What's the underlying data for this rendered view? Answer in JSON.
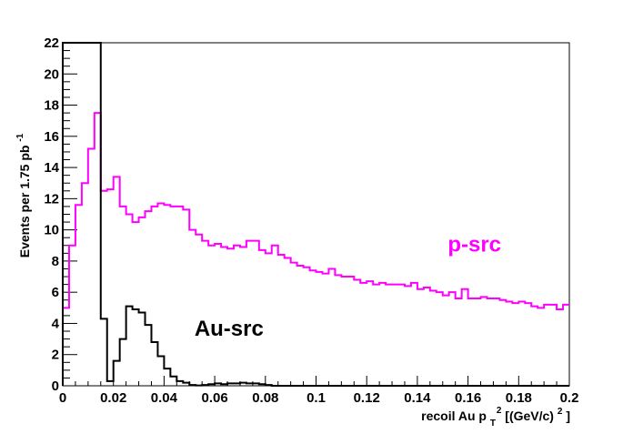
{
  "chart_data": {
    "type": "line",
    "xlabel": {
      "main": "recoil Au p",
      "sub": "T",
      "sup": "2",
      "rest": " [(GeV/c)",
      "rest_sup": "2",
      "close": "]"
    },
    "ylabel": {
      "main": "Events per 1.75 pb",
      "sup": "-1"
    },
    "xlim": [
      0,
      0.2
    ],
    "ylim": [
      0,
      22
    ],
    "x_ticks": [
      "0",
      "0.02",
      "0.04",
      "0.06",
      "0.08",
      "0.1",
      "0.12",
      "0.14",
      "0.16",
      "0.18",
      "0.2"
    ],
    "y_ticks": [
      "0",
      "2",
      "4",
      "6",
      "8",
      "10",
      "12",
      "14",
      "16",
      "18",
      "20",
      "22"
    ],
    "grid": false,
    "bin_width": 0.0025,
    "annotations": [
      {
        "text": "p-src",
        "color": "#ff00ff",
        "x": 0.152,
        "y": 8.6
      },
      {
        "text": "Au-src",
        "color": "#000000",
        "x": 0.052,
        "y": 3.2
      }
    ],
    "series": [
      {
        "name": "p-src",
        "color": "#ff00ff",
        "values": [
          5.0,
          9.0,
          11.6,
          13.0,
          15.2,
          17.5,
          12.5,
          12.6,
          13.4,
          11.5,
          11.0,
          10.5,
          10.8,
          11.2,
          11.5,
          11.7,
          11.6,
          11.5,
          11.5,
          11.3,
          10.0,
          9.7,
          9.3,
          9.0,
          9.1,
          8.9,
          8.8,
          9.0,
          8.9,
          9.3,
          9.3,
          8.7,
          8.5,
          9.0,
          8.4,
          8.2,
          7.9,
          7.7,
          7.6,
          7.4,
          7.3,
          7.2,
          7.5,
          7.1,
          7.0,
          7.0,
          6.8,
          6.6,
          6.7,
          6.5,
          6.6,
          6.5,
          6.5,
          6.5,
          6.4,
          6.6,
          6.2,
          6.3,
          6.1,
          6.0,
          5.8,
          6.0,
          5.6,
          6.2,
          5.6,
          5.6,
          5.7,
          5.6,
          5.6,
          5.5,
          5.4,
          5.3,
          5.4,
          5.3,
          5.1,
          5.0,
          5.2,
          5.2,
          4.9,
          5.2
        ],
        "clipped": [
          false,
          false,
          false,
          false,
          false,
          false,
          false,
          false,
          false,
          false,
          false,
          false,
          false,
          false,
          false,
          false,
          false,
          false,
          false,
          false,
          false,
          false,
          false,
          false,
          false,
          false,
          false,
          false,
          false,
          false,
          false,
          false,
          false,
          false,
          false,
          false,
          false,
          false,
          false,
          false,
          false,
          false,
          false,
          false,
          false,
          false,
          false,
          false,
          false,
          false,
          false,
          false,
          false,
          false,
          false,
          false,
          false,
          false,
          false,
          false,
          false,
          false,
          false,
          false,
          false,
          false,
          false,
          false,
          false,
          false,
          false,
          false,
          false,
          false,
          false,
          false,
          false,
          false,
          false,
          false
        ]
      },
      {
        "name": "Au-src",
        "color": "#000000",
        "values": [
          22.0,
          22.0,
          22.0,
          22.0,
          22.0,
          22.0,
          4.3,
          0.3,
          1.6,
          3.0,
          5.1,
          4.9,
          4.7,
          3.9,
          2.8,
          1.9,
          1.1,
          0.6,
          0.3,
          0.2,
          0.05,
          0.02,
          0.05,
          0.1,
          0.15,
          0.1,
          0.15,
          0.15,
          0.2,
          0.15,
          0.15,
          0.1,
          0.05,
          0.0,
          0.0,
          0.0,
          0.0,
          0.0,
          0.0,
          0.0,
          0.0,
          0.0,
          0.0,
          0.0,
          0.0,
          0.0,
          0.0,
          0.0,
          0.0,
          0.0,
          0.0,
          0.0,
          0.0,
          0.0,
          0.0,
          0.0,
          0.0,
          0.0,
          0.0,
          0.0,
          0.0,
          0.0,
          0.0,
          0.0,
          0.0,
          0.0,
          0.0,
          0.0,
          0.0,
          0.0,
          0.0,
          0.0,
          0.0,
          0.0,
          0.0,
          0.0,
          0.0,
          0.0,
          0.0,
          0.0
        ],
        "clipped": [
          true,
          true,
          true,
          true,
          true,
          true,
          false,
          false,
          false,
          false,
          false,
          false,
          false,
          false,
          false,
          false,
          false,
          false,
          false,
          false,
          false,
          false,
          false,
          false,
          false,
          false,
          false,
          false,
          false,
          false,
          false,
          false,
          false,
          false,
          false,
          false,
          false,
          false,
          false,
          false,
          false,
          false,
          false,
          false,
          false,
          false,
          false,
          false,
          false,
          false,
          false,
          false,
          false,
          false,
          false,
          false,
          false,
          false,
          false,
          false,
          false,
          false,
          false,
          false,
          false,
          false,
          false,
          false,
          false,
          false,
          false,
          false,
          false,
          false,
          false,
          false,
          false,
          false,
          false,
          false
        ]
      }
    ]
  }
}
